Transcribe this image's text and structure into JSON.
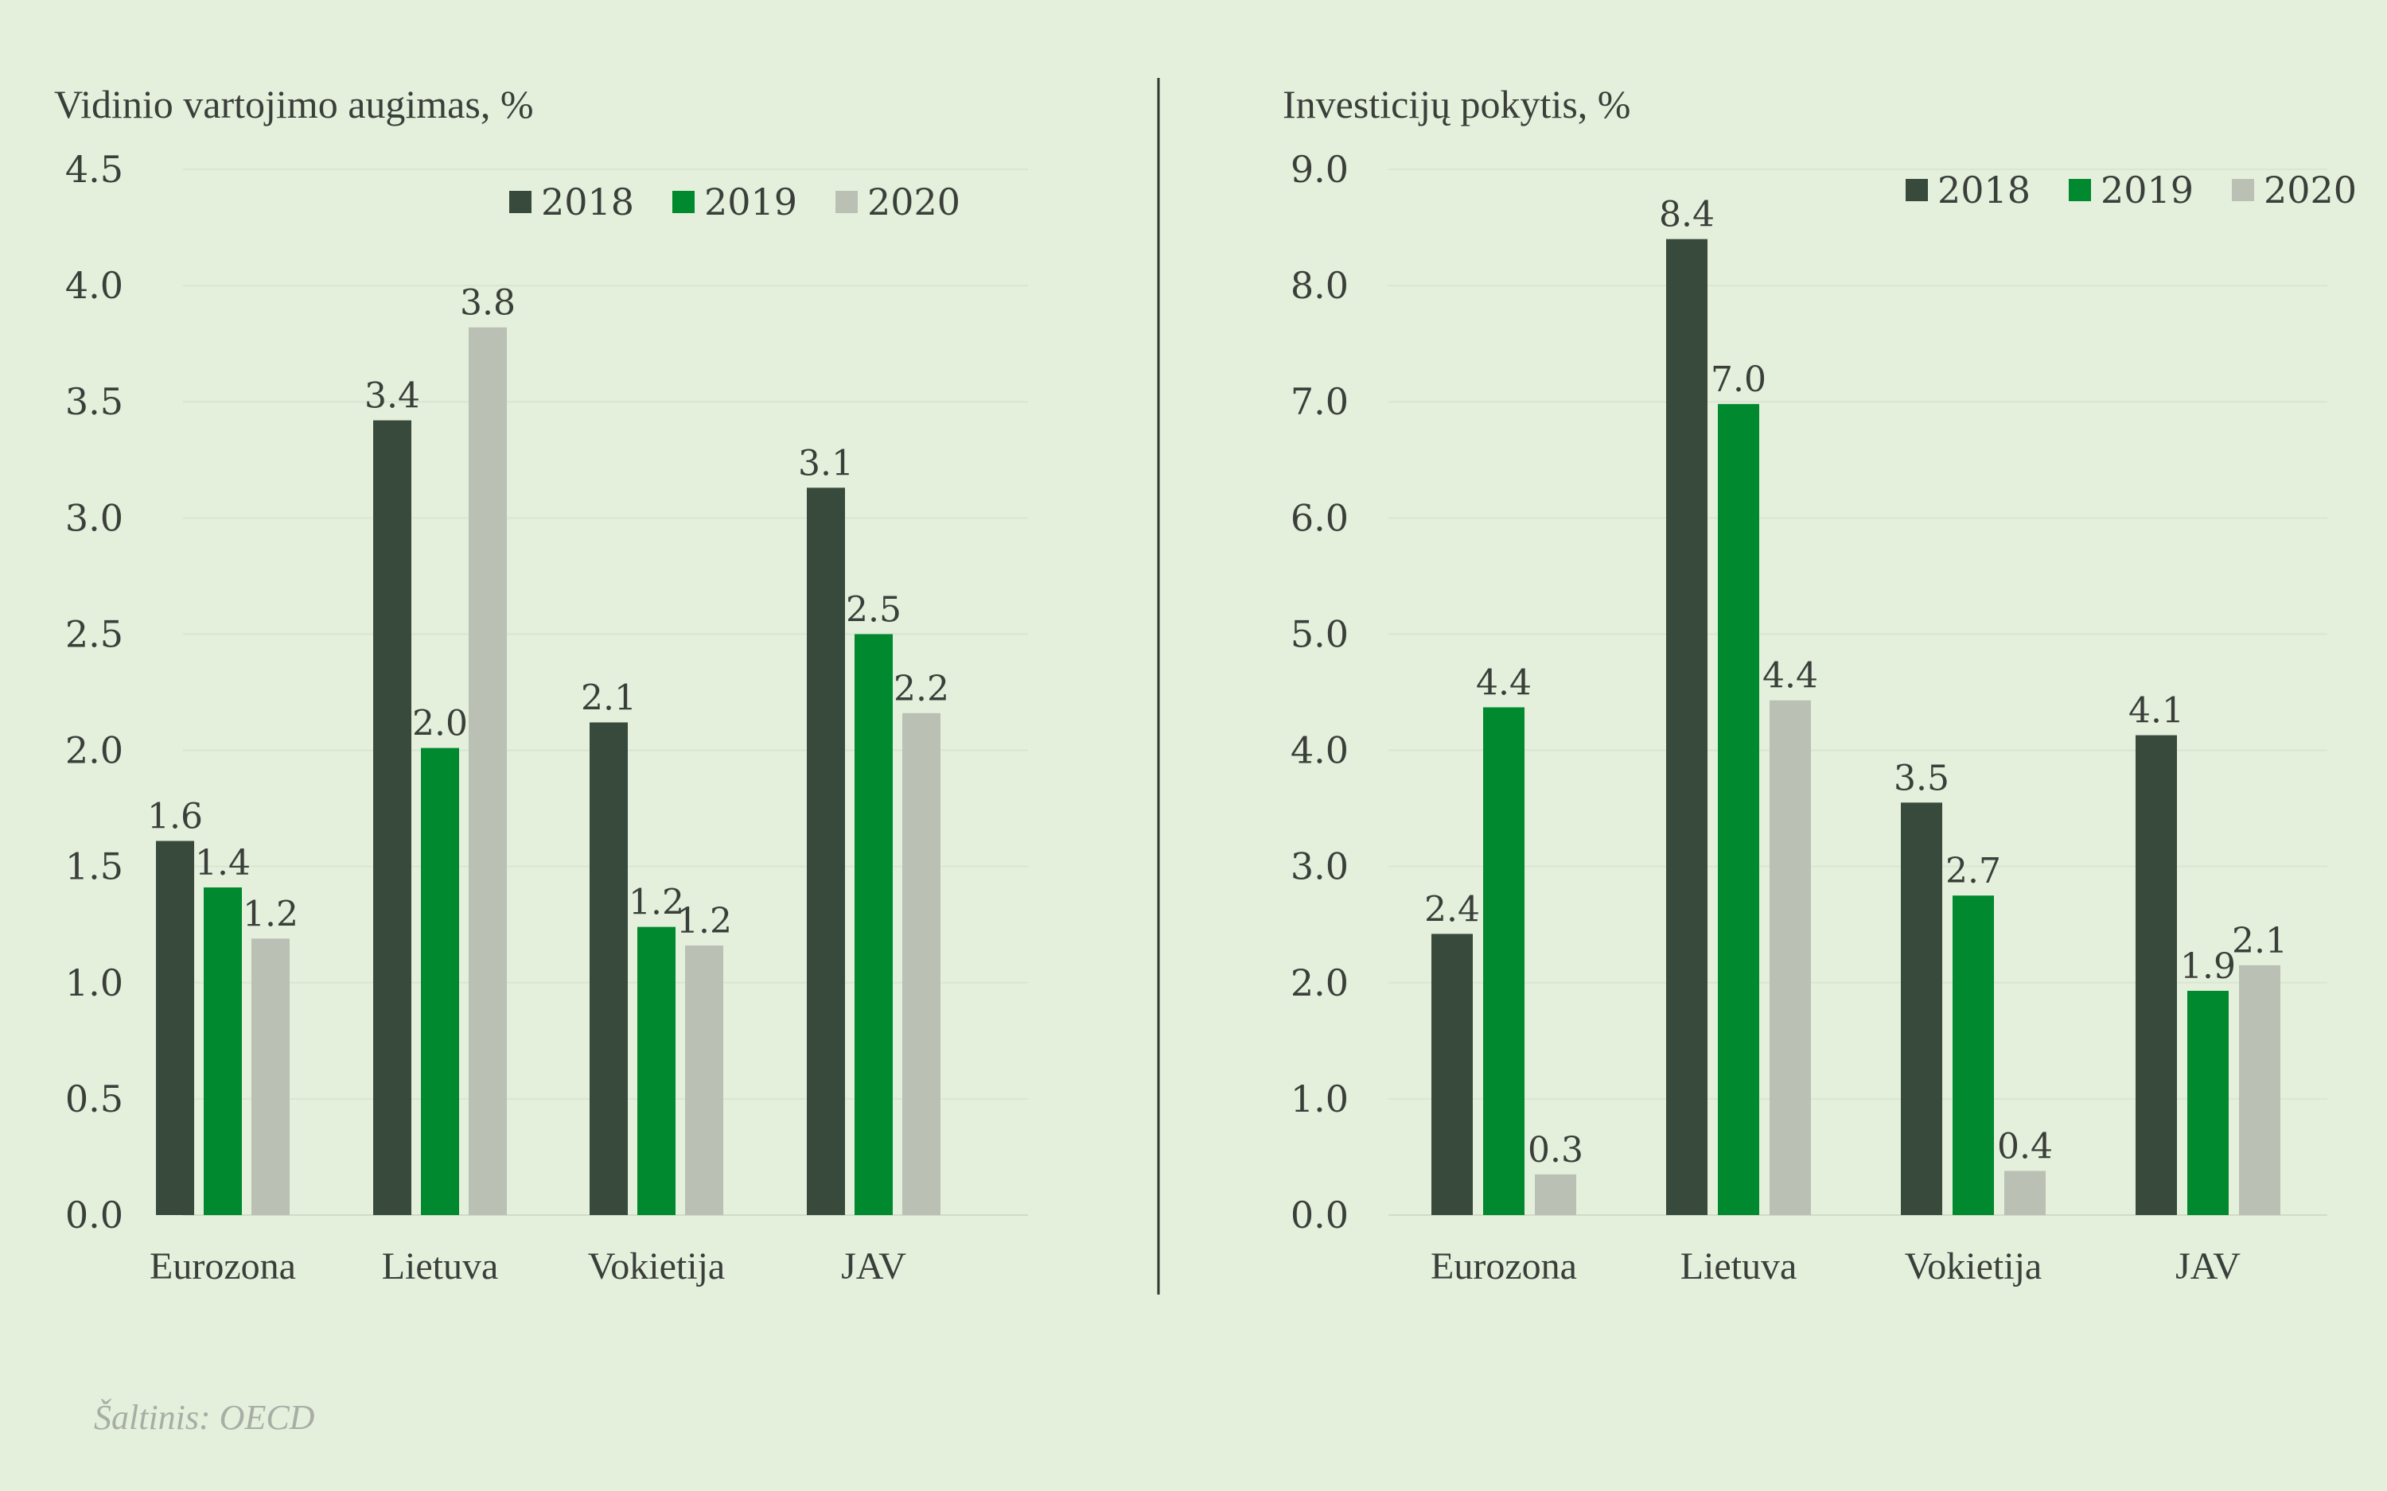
{
  "colors": {
    "2018": "#374a3c",
    "2019": "#00892f",
    "2020": "#bbc0b5"
  },
  "source": "Šaltinis: OECD",
  "chart_data": [
    {
      "type": "bar",
      "title": "Vidinio vartojimo augimas, %",
      "categories": [
        "Eurozona",
        "Lietuva",
        "Vokietija",
        "JAV"
      ],
      "series": [
        {
          "name": "2018",
          "values": [
            1.61,
            3.42,
            2.12,
            3.13
          ],
          "labels": [
            "1.6",
            "3.4",
            "2.1",
            "3.1"
          ]
        },
        {
          "name": "2019",
          "values": [
            1.41,
            2.01,
            1.24,
            2.5
          ],
          "labels": [
            "1.4",
            "2.0",
            "1.2",
            "2.5"
          ]
        },
        {
          "name": "2020",
          "values": [
            1.19,
            3.82,
            1.16,
            2.16
          ],
          "labels": [
            "1.2",
            "3.8",
            "1.2",
            "2.2"
          ]
        }
      ],
      "ylim": [
        0,
        4.5
      ],
      "yticks": [
        "0.0",
        "0.5",
        "1.0",
        "1.5",
        "2.0",
        "2.5",
        "3.0",
        "3.5",
        "4.0",
        "4.5"
      ],
      "legend": "top-right",
      "grid": true
    },
    {
      "type": "bar",
      "title": "Investicijų pokytis, %",
      "categories": [
        "Eurozona",
        "Lietuva",
        "Vokietija",
        "JAV"
      ],
      "series": [
        {
          "name": "2018",
          "values": [
            2.42,
            8.4,
            3.55,
            4.13
          ],
          "labels": [
            "2.4",
            "8.4",
            "3.5",
            "4.1"
          ]
        },
        {
          "name": "2019",
          "values": [
            4.37,
            6.98,
            2.75,
            1.93
          ],
          "labels": [
            "4.4",
            "7.0",
            "2.7",
            "1.9"
          ]
        },
        {
          "name": "2020",
          "values": [
            0.35,
            4.43,
            0.38,
            2.15
          ],
          "labels": [
            "0.3",
            "4.4",
            "0.4",
            "2.1"
          ]
        }
      ],
      "ylim": [
        0,
        9
      ],
      "yticks": [
        "0.0",
        "1.0",
        "2.0",
        "3.0",
        "4.0",
        "5.0",
        "6.0",
        "7.0",
        "8.0",
        "9.0"
      ],
      "legend": "top-right",
      "grid": true
    }
  ]
}
